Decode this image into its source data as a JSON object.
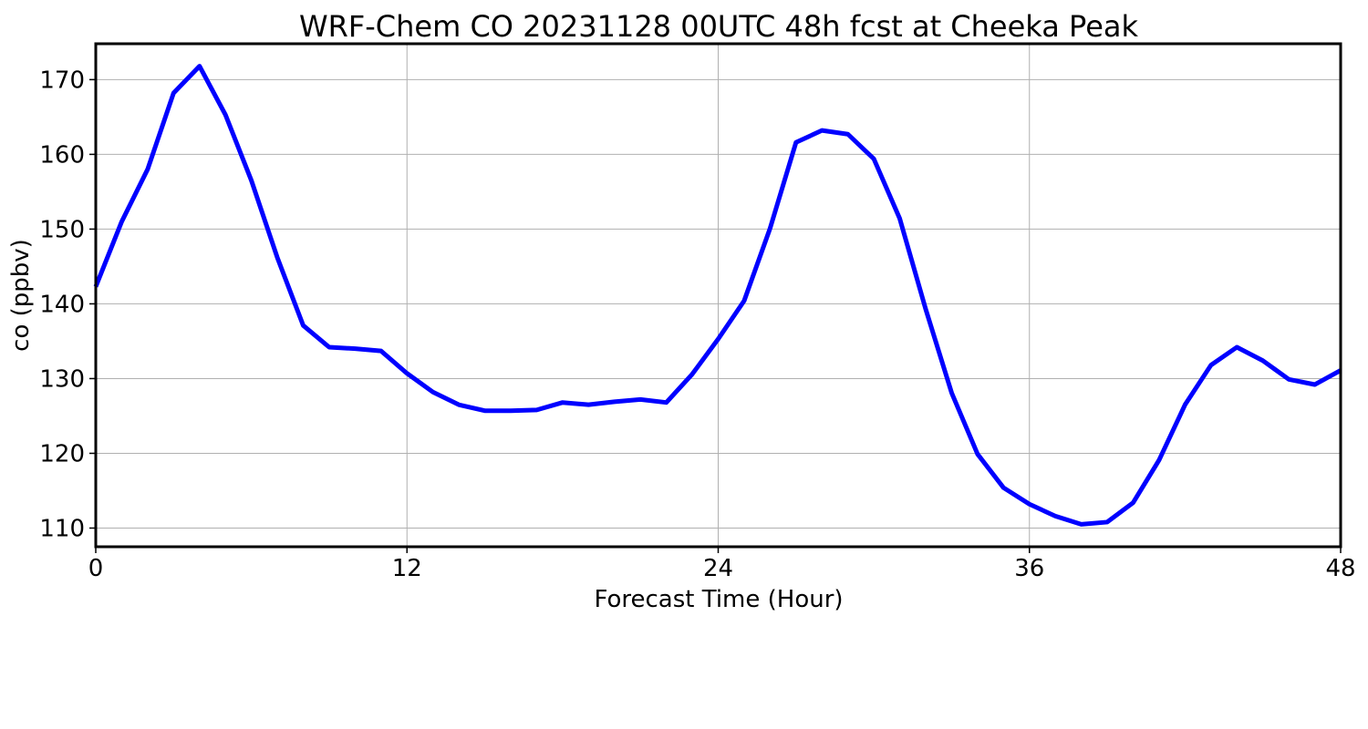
{
  "chart_data": {
    "type": "line",
    "title": "WRF-Chem CO  20231128 00UTC 48h fcst at Cheeka Peak",
    "xlabel": "Forecast Time (Hour)",
    "ylabel": "co  (ppbv)",
    "xlim": [
      0,
      48
    ],
    "ylim": [
      107.5,
      174.8
    ],
    "xticks": [
      0,
      12,
      24,
      36,
      48
    ],
    "yticks": [
      110,
      120,
      130,
      140,
      150,
      160,
      170
    ],
    "grid": true,
    "line_color": "#0000ff",
    "series": [
      {
        "x": [
          0,
          1,
          2,
          3,
          4,
          5,
          6,
          7,
          8,
          9,
          10,
          11,
          12,
          13,
          14,
          15,
          16,
          17,
          18,
          19,
          20,
          21,
          22,
          23,
          24,
          25,
          26,
          27,
          28,
          29,
          30,
          31,
          32,
          33,
          34,
          35,
          36,
          37,
          38,
          39,
          40,
          41,
          42,
          43,
          44,
          45,
          46,
          47,
          48
        ],
        "values": [
          142.3,
          151.0,
          158.0,
          168.2,
          171.8,
          165.3,
          156.5,
          146.2,
          137.1,
          134.2,
          134.0,
          133.7,
          130.7,
          128.2,
          126.5,
          125.7,
          125.7,
          125.8,
          126.8,
          126.5,
          126.9,
          127.2,
          126.8,
          130.6,
          135.3,
          140.4,
          150.1,
          161.6,
          163.2,
          162.7,
          159.4,
          151.4,
          139.3,
          128.1,
          119.9,
          115.4,
          113.2,
          111.6,
          110.5,
          110.8,
          113.4,
          119.1,
          126.5,
          131.8,
          134.2,
          132.4,
          129.9,
          129.2,
          131.1
        ]
      }
    ]
  }
}
